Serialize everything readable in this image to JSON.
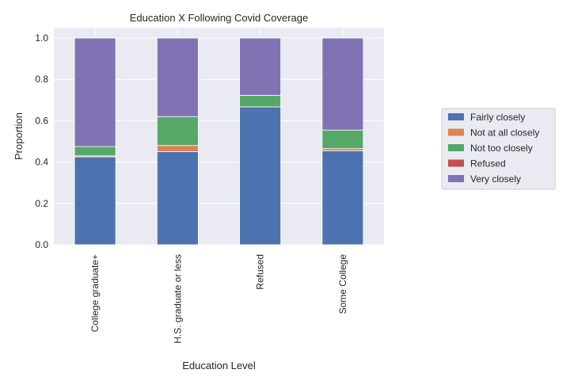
{
  "chart_data": {
    "type": "bar",
    "stacked": true,
    "title": "Education X Following Covid Coverage",
    "xlabel": "Education Level",
    "ylabel": "Proportion",
    "ylim": [
      0,
      1.05
    ],
    "yticks": [
      "0.0",
      "0.2",
      "0.4",
      "0.6",
      "0.8",
      "1.0"
    ],
    "categories": [
      "College graduate+",
      "H.S. graduate or less",
      "Refused",
      "Some College"
    ],
    "grid": true,
    "legend_position": "right",
    "series": [
      {
        "name": "Fairly closely",
        "color": "#4c72b0",
        "values": [
          0.425,
          0.45,
          0.667,
          0.455
        ]
      },
      {
        "name": "Not at all closely",
        "color": "#dd8452",
        "values": [
          0.005,
          0.03,
          0.0,
          0.01
        ]
      },
      {
        "name": "Not too closely",
        "color": "#55a868",
        "values": [
          0.045,
          0.14,
          0.056,
          0.09
        ]
      },
      {
        "name": "Refused",
        "color": "#c44e52",
        "values": [
          0.0,
          0.0,
          0.0,
          0.0
        ]
      },
      {
        "name": "Very closely",
        "color": "#8172b3",
        "values": [
          0.525,
          0.38,
          0.277,
          0.445
        ]
      }
    ]
  }
}
